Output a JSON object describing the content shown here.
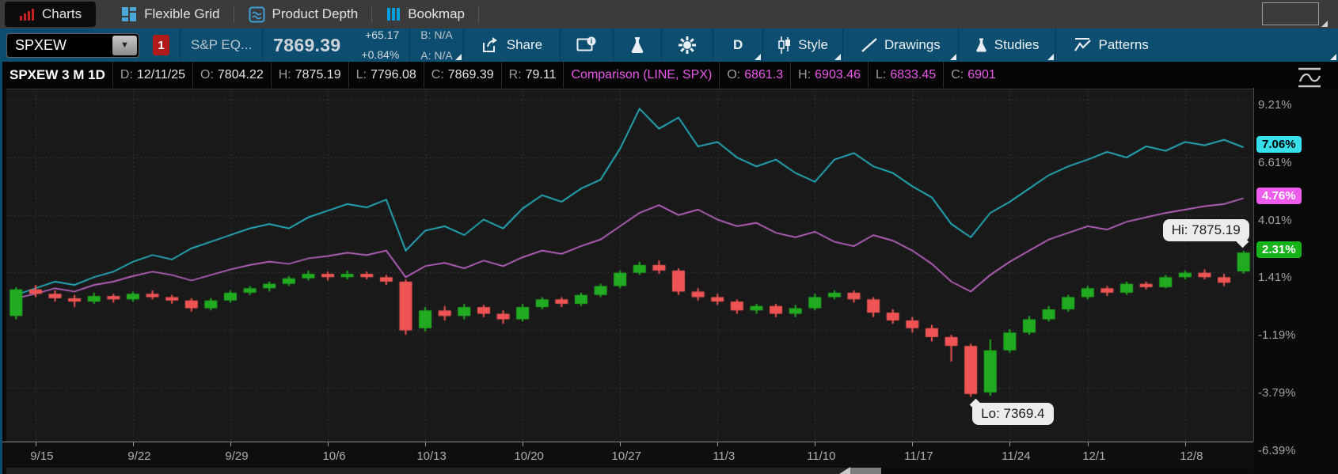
{
  "tab_bar": {
    "tabs": [
      {
        "label": "Charts",
        "icon": "bar-chart-icon",
        "active": true
      },
      {
        "label": "Flexible Grid",
        "icon": "grid-icon",
        "active": false
      },
      {
        "label": "Product Depth",
        "icon": "depth-waves-icon",
        "active": false
      },
      {
        "label": "Bookmap",
        "icon": "bookmap-bars-icon",
        "active": false
      }
    ]
  },
  "toolbar": {
    "symbol": "SPXEW",
    "alert_badge": "1",
    "description": "S&P EQ...",
    "price": "7869.39",
    "change": "+65.17",
    "change_pct": "+0.84%",
    "bid": "B: N/A",
    "ask": "A: N/A",
    "share_label": "Share",
    "timeframe_label": "D",
    "style_label": "Style",
    "drawings_label": "Drawings",
    "studies_label": "Studies",
    "patterns_label": "Patterns"
  },
  "status_row": {
    "title": "SPXEW 3 M 1D",
    "fields": [
      {
        "label": "D:",
        "value": "12/11/25"
      },
      {
        "label": "O:",
        "value": "7804.22"
      },
      {
        "label": "H:",
        "value": "7875.19"
      },
      {
        "label": "L:",
        "value": "7796.08"
      },
      {
        "label": "C:",
        "value": "7869.39"
      },
      {
        "label": "R:",
        "value": "79.11"
      }
    ],
    "comparison_title": "Comparison (LINE, SPX)",
    "comparison_fields": [
      {
        "label": "O:",
        "value": "6861.3"
      },
      {
        "label": "H:",
        "value": "6903.46"
      },
      {
        "label": "L:",
        "value": "6833.45"
      },
      {
        "label": "C:",
        "value": "6901"
      }
    ]
  },
  "colors": {
    "up": "#21ab21",
    "down": "#ef5454",
    "cyan_line": "#27bccd",
    "magenta_line": "#c569cd",
    "cyan_badge": "#35dfeb",
    "magenta_badge": "#ee5cee",
    "green_badge": "#16b31b",
    "grid": "#3d3d3d",
    "chart_bg": "#191919"
  },
  "chart_data": {
    "type": "candlestick+line",
    "title": "SPXEW 3 M 1D percent comparison chart",
    "ylim_pct": [
      -6.25,
      9.67
    ],
    "y_axis": [
      {
        "label": "9.21%",
        "value": 9.21
      },
      {
        "label": "6.61%",
        "value": 6.61
      },
      {
        "label": "4.01%",
        "value": 4.01
      },
      {
        "label": "1.41%",
        "value": 1.41
      },
      {
        "label": "-1.19%",
        "value": -1.19
      },
      {
        "label": "-3.79%",
        "value": -3.79
      },
      {
        "label": "-6.39%",
        "value": -6.39
      }
    ],
    "badges": [
      {
        "label": "7.06%",
        "value": 7.06,
        "color_key": "cyan_badge",
        "text": "#000000"
      },
      {
        "label": "4.76%",
        "value": 4.76,
        "color_key": "magenta_badge",
        "text": "#ffffff"
      },
      {
        "label": "2.31%",
        "value": 2.31,
        "color_key": "green_badge",
        "text": "#ffffff"
      }
    ],
    "x_ticks": [
      {
        "label": "9/15",
        "index": 1
      },
      {
        "label": "9/22",
        "index": 6
      },
      {
        "label": "9/29",
        "index": 11
      },
      {
        "label": "10/6",
        "index": 16
      },
      {
        "label": "10/13",
        "index": 21
      },
      {
        "label": "10/20",
        "index": 26
      },
      {
        "label": "10/27",
        "index": 31
      },
      {
        "label": "11/3",
        "index": 36
      },
      {
        "label": "11/10",
        "index": 41
      },
      {
        "label": "11/17",
        "index": 46
      },
      {
        "label": "11/24",
        "index": 51
      },
      {
        "label": "12/1",
        "index": 55
      },
      {
        "label": "12/8",
        "index": 60
      }
    ],
    "annotations": [
      {
        "id": "hi",
        "text": "Hi: 7875.19",
        "index": 63,
        "value_pct": 2.39,
        "placement": "above-left"
      },
      {
        "id": "lo",
        "text": "Lo: 7369.4",
        "index": 49,
        "value_pct": -4.19,
        "placement": "below-right"
      }
    ],
    "candles": {
      "name": "SPXEW",
      "ohlc_pct": [
        [
          -0.55,
          0.75,
          -0.7,
          0.65
        ],
        [
          0.65,
          0.85,
          0.3,
          0.45
        ],
        [
          0.45,
          0.6,
          0.1,
          0.25
        ],
        [
          0.25,
          0.4,
          -0.15,
          0.1
        ],
        [
          0.1,
          0.5,
          0.0,
          0.35
        ],
        [
          0.35,
          0.45,
          0.05,
          0.2
        ],
        [
          0.2,
          0.55,
          0.1,
          0.45
        ],
        [
          0.45,
          0.6,
          0.2,
          0.3
        ],
        [
          0.3,
          0.4,
          0.0,
          0.15
        ],
        [
          0.15,
          0.25,
          -0.35,
          -0.2
        ],
        [
          -0.2,
          0.25,
          -0.3,
          0.15
        ],
        [
          0.15,
          0.6,
          0.05,
          0.5
        ],
        [
          0.5,
          0.8,
          0.4,
          0.7
        ],
        [
          0.7,
          1.0,
          0.55,
          0.9
        ],
        [
          0.9,
          1.25,
          0.8,
          1.15
        ],
        [
          1.15,
          1.5,
          1.05,
          1.35
        ],
        [
          1.35,
          1.45,
          1.05,
          1.2
        ],
        [
          1.2,
          1.5,
          1.1,
          1.35
        ],
        [
          1.35,
          1.45,
          1.1,
          1.2
        ],
        [
          1.2,
          1.3,
          0.85,
          1.0
        ],
        [
          1.0,
          1.1,
          -1.4,
          -1.2
        ],
        [
          -1.1,
          -0.15,
          -1.25,
          -0.3
        ],
        [
          -0.3,
          -0.1,
          -0.75,
          -0.55
        ],
        [
          -0.55,
          0.0,
          -0.7,
          -0.15
        ],
        [
          -0.15,
          -0.05,
          -0.6,
          -0.45
        ],
        [
          -0.45,
          -0.3,
          -0.9,
          -0.7
        ],
        [
          -0.7,
          0.0,
          -0.8,
          -0.15
        ],
        [
          -0.15,
          0.3,
          -0.25,
          0.2
        ],
        [
          0.2,
          0.3,
          -0.15,
          0.0
        ],
        [
          0.0,
          0.5,
          -0.1,
          0.4
        ],
        [
          0.4,
          0.9,
          0.3,
          0.8
        ],
        [
          0.8,
          1.5,
          0.7,
          1.4
        ],
        [
          1.4,
          1.9,
          1.3,
          1.75
        ],
        [
          1.75,
          1.95,
          1.35,
          1.5
        ],
        [
          1.5,
          1.6,
          0.4,
          0.55
        ],
        [
          0.55,
          0.7,
          0.15,
          0.3
        ],
        [
          0.3,
          0.45,
          -0.05,
          0.1
        ],
        [
          0.1,
          0.2,
          -0.45,
          -0.3
        ],
        [
          -0.3,
          0.0,
          -0.45,
          -0.1
        ],
        [
          -0.1,
          0.0,
          -0.6,
          -0.45
        ],
        [
          -0.45,
          -0.05,
          -0.6,
          -0.2
        ],
        [
          -0.2,
          0.45,
          -0.3,
          0.3
        ],
        [
          0.3,
          0.6,
          0.2,
          0.5
        ],
        [
          0.5,
          0.6,
          0.05,
          0.2
        ],
        [
          0.2,
          0.3,
          -0.6,
          -0.4
        ],
        [
          -0.4,
          -0.25,
          -0.9,
          -0.75
        ],
        [
          -0.75,
          -0.6,
          -1.3,
          -1.1
        ],
        [
          -1.1,
          -0.95,
          -1.7,
          -1.5
        ],
        [
          -1.5,
          -1.4,
          -2.6,
          -1.9
        ],
        [
          -1.9,
          -1.8,
          -4.19,
          -4.07
        ],
        [
          -4.0,
          -1.6,
          -4.15,
          -2.1
        ],
        [
          -2.1,
          -1.15,
          -2.2,
          -1.3
        ],
        [
          -1.3,
          -0.55,
          -1.4,
          -0.7
        ],
        [
          -0.7,
          -0.1,
          -0.8,
          -0.25
        ],
        [
          -0.25,
          0.4,
          -0.35,
          0.3
        ],
        [
          0.3,
          0.8,
          0.2,
          0.7
        ],
        [
          0.7,
          0.8,
          0.35,
          0.5
        ],
        [
          0.5,
          1.0,
          0.4,
          0.9
        ],
        [
          0.9,
          1.0,
          0.65,
          0.75
        ],
        [
          0.75,
          1.3,
          0.7,
          1.2
        ],
        [
          1.2,
          1.5,
          1.1,
          1.4
        ],
        [
          1.4,
          1.55,
          1.1,
          1.2
        ],
        [
          1.2,
          1.35,
          0.8,
          0.95
        ],
        [
          1.46,
          2.39,
          1.36,
          2.31
        ]
      ]
    },
    "lines": [
      {
        "name": "comparison-line-upper",
        "color_key": "cyan_line",
        "values_pct": [
          0.4,
          0.7,
          1.0,
          0.85,
          1.2,
          1.45,
          1.9,
          2.2,
          2.0,
          2.5,
          2.8,
          3.1,
          3.4,
          3.6,
          3.4,
          3.9,
          4.2,
          4.5,
          4.35,
          4.7,
          2.4,
          3.3,
          3.5,
          3.1,
          3.8,
          3.4,
          4.3,
          4.9,
          4.6,
          5.2,
          5.6,
          7.0,
          8.8,
          7.9,
          8.4,
          7.1,
          7.3,
          6.6,
          6.2,
          6.5,
          5.9,
          5.5,
          6.5,
          6.8,
          6.2,
          5.9,
          5.3,
          4.8,
          3.6,
          3.0,
          4.1,
          4.6,
          5.2,
          5.8,
          6.2,
          6.5,
          6.85,
          6.6,
          7.1,
          6.9,
          7.3,
          7.15,
          7.4,
          7.06
        ]
      },
      {
        "name": "Comparison (LINE, SPX)",
        "color_key": "magenta_line",
        "values_pct": [
          0.25,
          0.45,
          0.7,
          0.55,
          0.85,
          1.0,
          1.25,
          1.45,
          1.3,
          1.05,
          1.3,
          1.55,
          1.75,
          1.9,
          1.8,
          2.05,
          2.15,
          2.3,
          2.2,
          2.4,
          1.2,
          1.7,
          1.85,
          1.6,
          1.95,
          1.7,
          2.1,
          2.4,
          2.25,
          2.6,
          2.9,
          3.5,
          4.1,
          4.45,
          4.0,
          4.25,
          3.8,
          3.5,
          3.65,
          3.2,
          3.0,
          3.25,
          2.8,
          2.6,
          3.1,
          2.85,
          2.4,
          1.8,
          1.0,
          0.55,
          1.3,
          1.9,
          2.4,
          2.9,
          3.2,
          3.5,
          3.35,
          3.7,
          3.9,
          4.1,
          4.25,
          4.4,
          4.5,
          4.76
        ]
      }
    ]
  }
}
